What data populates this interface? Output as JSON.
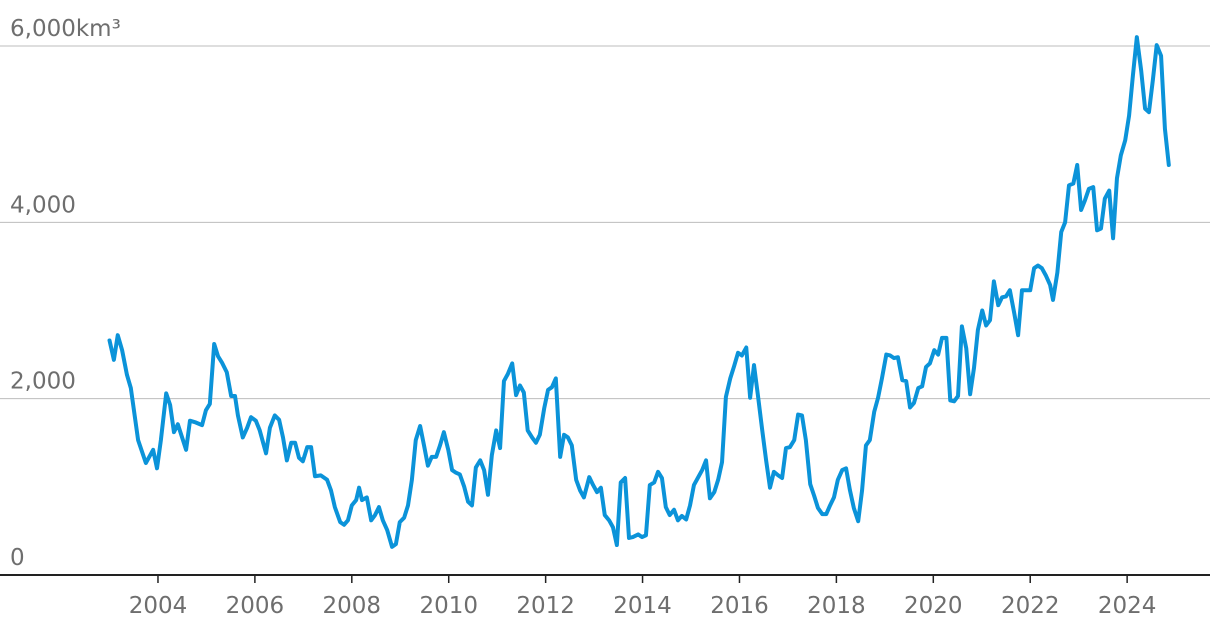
{
  "chart_data": {
    "type": "line",
    "xlim": [
      2000.74,
      2025.71
    ],
    "ylim": [
      0,
      6000
    ],
    "xticks": [
      2004,
      2006,
      2008,
      2010,
      2012,
      2014,
      2016,
      2018,
      2020,
      2022,
      2024
    ],
    "yticks": [
      0,
      {
        "value": 2000,
        "label": "2,000"
      },
      {
        "value": 4000,
        "label": "4,000"
      },
      {
        "value": 6000,
        "label": "6,000km³"
      }
    ],
    "grid": true,
    "series": [
      {
        "color": "#0b93d9",
        "x": [
          2003.0,
          2003.09,
          2003.17,
          2003.26,
          2003.36,
          2003.44,
          2003.59,
          2003.75,
          2003.9,
          2003.98,
          2004.06,
          2004.17,
          2004.25,
          2004.33,
          2004.41,
          2004.58,
          2004.66,
          2004.78,
          2004.91,
          2004.99,
          2005.07,
          2005.16,
          2005.24,
          2005.32,
          2005.42,
          2005.51,
          2005.59,
          2005.65,
          2005.75,
          2005.84,
          2005.92,
          2006.02,
          2006.1,
          2006.23,
          2006.31,
          2006.41,
          2006.5,
          2006.58,
          2006.66,
          2006.75,
          2006.83,
          2006.91,
          2006.99,
          2007.08,
          2007.16,
          2007.24,
          2007.36,
          2007.49,
          2007.57,
          2007.65,
          2007.76,
          2007.84,
          2007.92,
          2008.0,
          2008.09,
          2008.15,
          2008.21,
          2008.31,
          2008.4,
          2008.48,
          2008.56,
          2008.64,
          2008.73,
          2008.83,
          2008.91,
          2008.99,
          2009.08,
          2009.16,
          2009.24,
          2009.32,
          2009.41,
          2009.49,
          2009.57,
          2009.65,
          2009.74,
          2009.82,
          2009.9,
          2009.99,
          2010.07,
          2010.15,
          2010.23,
          2010.32,
          2010.4,
          2010.48,
          2010.56,
          2010.65,
          2010.73,
          2010.81,
          2010.89,
          2010.98,
          2011.06,
          2011.14,
          2011.22,
          2011.31,
          2011.39,
          2011.47,
          2011.55,
          2011.63,
          2011.72,
          2011.8,
          2011.88,
          2011.97,
          2012.05,
          2012.13,
          2012.21,
          2012.3,
          2012.38,
          2012.46,
          2012.54,
          2012.63,
          2012.71,
          2012.79,
          2012.9,
          2012.98,
          2013.06,
          2013.14,
          2013.22,
          2013.31,
          2013.39,
          2013.47,
          2013.55,
          2013.64,
          2013.72,
          2013.8,
          2013.91,
          2013.99,
          2014.07,
          2014.15,
          2014.24,
          2014.32,
          2014.4,
          2014.48,
          2014.56,
          2014.65,
          2014.73,
          2014.81,
          2014.9,
          2014.98,
          2015.06,
          2015.14,
          2015.23,
          2015.31,
          2015.39,
          2015.48,
          2015.56,
          2015.64,
          2015.72,
          2015.81,
          2015.89,
          2015.97,
          2016.05,
          2016.14,
          2016.22,
          2016.3,
          2016.38,
          2016.47,
          2016.55,
          2016.63,
          2016.71,
          2016.8,
          2016.88,
          2016.96,
          2017.04,
          2017.13,
          2017.21,
          2017.29,
          2017.37,
          2017.46,
          2017.54,
          2017.62,
          2017.71,
          2017.79,
          2017.87,
          2017.95,
          2018.03,
          2018.12,
          2018.2,
          2018.28,
          2018.36,
          2018.45,
          2018.53,
          2018.61,
          2018.69,
          2018.78,
          2018.86,
          2018.94,
          2019.03,
          2019.11,
          2019.19,
          2019.27,
          2019.36,
          2019.44,
          2019.52,
          2019.6,
          2019.69,
          2019.77,
          2019.85,
          2019.93,
          2020.02,
          2020.1,
          2020.18,
          2020.27,
          2020.35,
          2020.43,
          2020.51,
          2020.59,
          2020.68,
          2020.76,
          2020.84,
          2020.92,
          2021.01,
          2021.09,
          2021.17,
          2021.25,
          2021.34,
          2021.42,
          2021.5,
          2021.58,
          2021.67,
          2021.75,
          2021.83,
          2021.91,
          2022.0,
          2022.08,
          2022.16,
          2022.24,
          2022.32,
          2022.41,
          2022.47,
          2022.56,
          2022.64,
          2022.72,
          2022.8,
          2022.89,
          2022.97,
          2023.05,
          2023.13,
          2023.21,
          2023.3,
          2023.38,
          2023.46,
          2023.54,
          2023.63,
          2023.71,
          2023.79,
          2023.87,
          2023.96,
          2024.04,
          2024.12,
          2024.2,
          2024.29,
          2024.37,
          2024.45,
          2024.53,
          2024.61,
          2024.7,
          2024.78,
          2024.86
        ],
        "values": [
          2660,
          2440,
          2720,
          2550,
          2270,
          2120,
          1530,
          1270,
          1420,
          1210,
          1530,
          2060,
          1930,
          1620,
          1710,
          1420,
          1750,
          1730,
          1700,
          1870,
          1940,
          2620,
          2480,
          2410,
          2300,
          2030,
          2030,
          1810,
          1560,
          1670,
          1790,
          1750,
          1640,
          1380,
          1670,
          1810,
          1760,
          1560,
          1300,
          1500,
          1500,
          1330,
          1290,
          1450,
          1450,
          1120,
          1130,
          1080,
          960,
          770,
          600,
          570,
          620,
          790,
          850,
          990,
          850,
          880,
          620,
          680,
          770,
          620,
          510,
          320,
          350,
          600,
          650,
          790,
          1080,
          1530,
          1690,
          1470,
          1240,
          1340,
          1340,
          1470,
          1620,
          1420,
          1190,
          1160,
          1140,
          1000,
          830,
          790,
          1220,
          1300,
          1190,
          910,
          1360,
          1640,
          1440,
          2200,
          2280,
          2400,
          2040,
          2150,
          2070,
          1640,
          1560,
          1500,
          1590,
          1890,
          2100,
          2130,
          2230,
          1340,
          1590,
          1560,
          1470,
          1080,
          960,
          880,
          1110,
          1020,
          940,
          990,
          680,
          620,
          540,
          340,
          1050,
          1100,
          420,
          430,
          460,
          430,
          450,
          1020,
          1050,
          1170,
          1100,
          770,
          680,
          740,
          620,
          670,
          630,
          790,
          1020,
          1100,
          1190,
          1300,
          870,
          940,
          1080,
          1280,
          2020,
          2230,
          2370,
          2520,
          2490,
          2580,
          2010,
          2380,
          2040,
          1640,
          1300,
          990,
          1170,
          1130,
          1100,
          1440,
          1450,
          1530,
          1820,
          1810,
          1530,
          1030,
          900,
          760,
          690,
          690,
          790,
          880,
          1080,
          1190,
          1210,
          960,
          760,
          610,
          960,
          1470,
          1530,
          1850,
          2010,
          2230,
          2500,
          2490,
          2460,
          2470,
          2210,
          2200,
          1900,
          1950,
          2120,
          2140,
          2360,
          2400,
          2550,
          2500,
          2690,
          2690,
          1980,
          1970,
          2030,
          2820,
          2570,
          2050,
          2350,
          2780,
          3000,
          2830,
          2890,
          3330,
          3060,
          3150,
          3160,
          3230,
          2970,
          2720,
          3230,
          3230,
          3230,
          3480,
          3510,
          3480,
          3400,
          3290,
          3120,
          3430,
          3890,
          4000,
          4420,
          4440,
          4650,
          4140,
          4250,
          4380,
          4400,
          3910,
          3930,
          4270,
          4360,
          3820,
          4500,
          4760,
          4930,
          5210,
          5670,
          6100,
          5720,
          5290,
          5250,
          5610,
          6010,
          5890,
          5060,
          4650
        ]
      }
    ]
  }
}
